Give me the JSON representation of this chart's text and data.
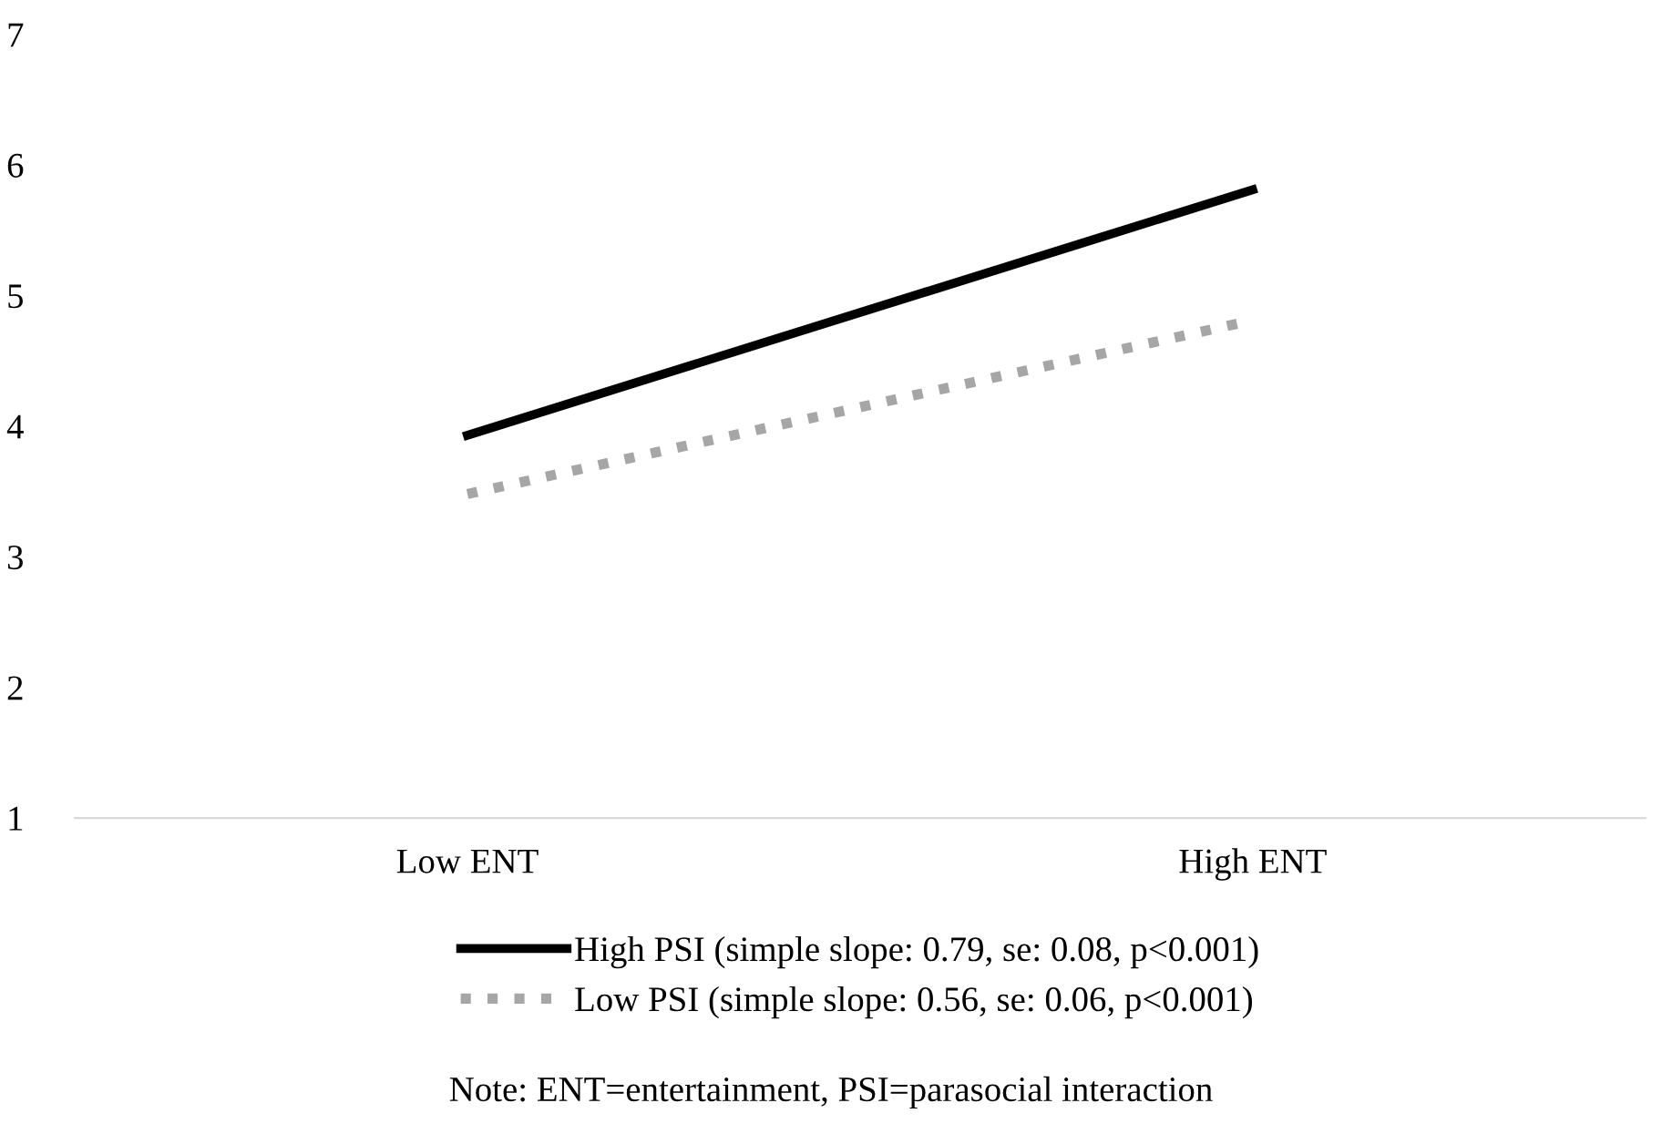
{
  "chart_data": {
    "type": "line",
    "categories": [
      "Low ENT",
      "High ENT"
    ],
    "series": [
      {
        "name": "High PSI (simple slope: 0.79, se: 0.08, p<0.001)",
        "color": "#000000",
        "values": [
          3.93,
          5.81
        ],
        "line_style": "solid"
      },
      {
        "name": "Low PSI (simple slope: 0.56, se: 0.06, p<0.001)",
        "color": "#a6a6a6",
        "values": [
          3.48,
          4.81
        ],
        "line_style": "dotted"
      }
    ],
    "ylim": [
      1,
      7
    ],
    "yticks": [
      1,
      2,
      3,
      4,
      5,
      6,
      7
    ],
    "grid": false,
    "legend": "bottom",
    "marker": "none",
    "annotations": [
      "Note: ENT=entertainment, PSI=parasocial interaction"
    ]
  }
}
